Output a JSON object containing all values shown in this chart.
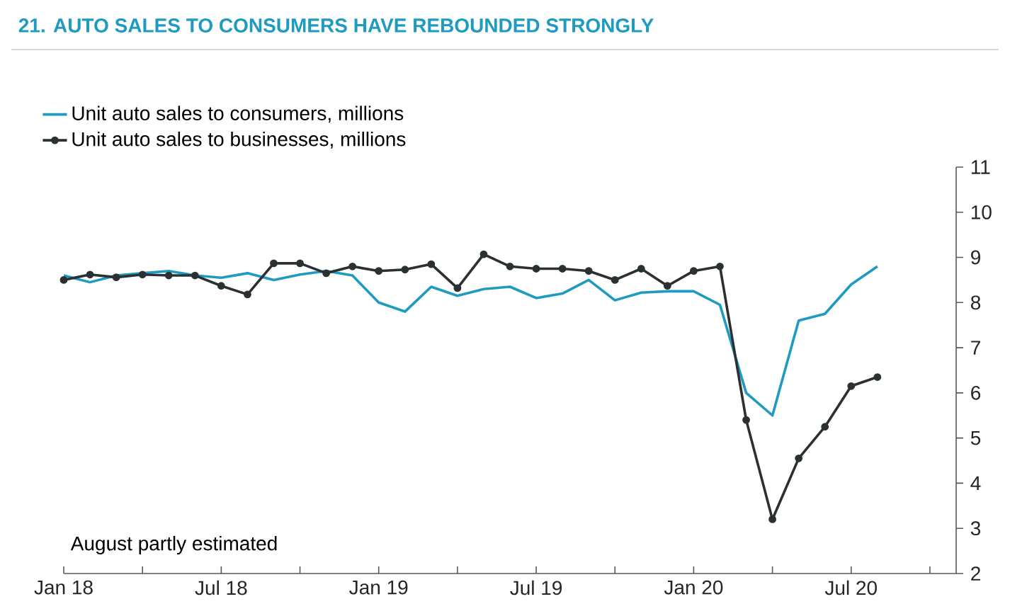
{
  "chart_data": {
    "type": "line",
    "title": "21. AUTO SALES TO CONSUMERS HAVE REBOUNDED STRONGLY",
    "x": [
      "2018-01",
      "2018-02",
      "2018-03",
      "2018-04",
      "2018-05",
      "2018-06",
      "2018-07",
      "2018-08",
      "2018-09",
      "2018-10",
      "2018-11",
      "2018-12",
      "2019-01",
      "2019-02",
      "2019-03",
      "2019-04",
      "2019-05",
      "2019-06",
      "2019-07",
      "2019-08",
      "2019-09",
      "2019-10",
      "2019-11",
      "2019-12",
      "2020-01",
      "2020-02",
      "2020-03",
      "2020-04",
      "2020-05",
      "2020-06",
      "2020-07",
      "2020-08"
    ],
    "series": [
      {
        "name": "Unit auto sales to consumers, millions",
        "color": "#1f9bc0",
        "marker": "none",
        "values": [
          8.6,
          8.45,
          8.6,
          8.65,
          8.7,
          8.6,
          8.55,
          8.65,
          8.5,
          8.62,
          8.7,
          8.6,
          8.0,
          7.8,
          8.35,
          8.15,
          8.3,
          8.35,
          8.1,
          8.2,
          8.5,
          8.05,
          8.22,
          8.25,
          8.25,
          7.95,
          6.0,
          5.5,
          7.6,
          7.75,
          8.4,
          8.8
        ]
      },
      {
        "name": "Unit auto sales to businesses, millions",
        "color": "#2b3133",
        "marker": "circle",
        "values": [
          8.5,
          8.62,
          8.56,
          8.62,
          8.6,
          8.6,
          8.37,
          8.18,
          8.87,
          8.87,
          8.65,
          8.8,
          8.7,
          8.73,
          8.85,
          8.32,
          9.07,
          8.8,
          8.75,
          8.75,
          8.7,
          8.5,
          8.75,
          8.37,
          8.7,
          8.8,
          5.4,
          3.2,
          4.55,
          5.25,
          6.15,
          6.35
        ]
      }
    ],
    "xlim": [
      "2018-01",
      "2020-11"
    ],
    "xticks": [
      {
        "value": "2018-01",
        "label": "Jan 18"
      },
      {
        "value": "2018-04",
        "label": null
      },
      {
        "value": "2018-07",
        "label": "Jul 18"
      },
      {
        "value": "2018-10",
        "label": null
      },
      {
        "value": "2019-01",
        "label": "Jan 19"
      },
      {
        "value": "2019-04",
        "label": null
      },
      {
        "value": "2019-07",
        "label": "Jul 19"
      },
      {
        "value": "2019-10",
        "label": null
      },
      {
        "value": "2020-01",
        "label": "Jan 20"
      },
      {
        "value": "2020-04",
        "label": null
      },
      {
        "value": "2020-07",
        "label": "Jul 20"
      },
      {
        "value": "2020-10",
        "label": null
      }
    ],
    "ylim": [
      2,
      11
    ],
    "yticks": [
      2,
      3,
      4,
      5,
      6,
      7,
      8,
      9,
      10,
      11
    ],
    "legend": "top left",
    "grid": false,
    "line_style": "solid",
    "annotations": [
      "August partly estimated"
    ]
  }
}
